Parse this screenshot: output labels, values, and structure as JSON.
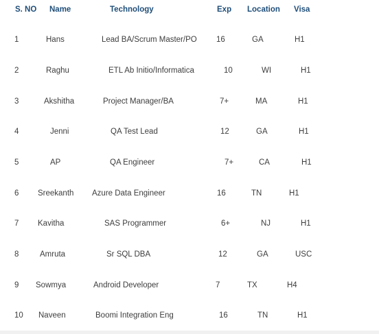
{
  "headers": {
    "sno": "S. NO",
    "name": "Name",
    "technology": "Technology",
    "exp": "Exp",
    "location": "Location",
    "visa": "Visa"
  },
  "rows": [
    {
      "sno": "1",
      "name": "Hans",
      "technology": "Lead BA/Scrum Master/PO",
      "exp": "16",
      "location": "GA",
      "visa": "H1"
    },
    {
      "sno": "2",
      "name": "Raghu",
      "technology": "ETL Ab Initio/Informatica",
      "exp": "10",
      "location": "WI",
      "visa": "H1"
    },
    {
      "sno": "3",
      "name": "Akshitha",
      "technology": "Project Manager/BA",
      "exp": "7+",
      "location": "MA",
      "visa": "H1"
    },
    {
      "sno": "4",
      "name": "Jenni",
      "technology": "QA Test Lead",
      "exp": "12",
      "location": "GA",
      "visa": "H1"
    },
    {
      "sno": "5",
      "name": "AP",
      "technology": "QA Engineer",
      "exp": "7+",
      "location": "CA",
      "visa": "H1"
    },
    {
      "sno": "6",
      "name": "Sreekanth",
      "technology": "Azure Data Engineer",
      "exp": "16",
      "location": "TN",
      "visa": "H1"
    },
    {
      "sno": "7",
      "name": "Kavitha",
      "technology": "SAS Programmer",
      "exp": "6+",
      "location": "NJ",
      "visa": "H1"
    },
    {
      "sno": "8",
      "name": "Amruta",
      "technology": "Sr SQL DBA",
      "exp": "12",
      "location": "GA",
      "visa": "USC"
    },
    {
      "sno": "9",
      "name": "Sowmya",
      "technology": "Android Developer",
      "exp": "7",
      "location": "TX",
      "visa": "H4"
    },
    {
      "sno": "10",
      "name": "Naveen",
      "technology": "Boomi Integration Eng",
      "exp": "16",
      "location": "TN",
      "visa": "H1"
    }
  ]
}
